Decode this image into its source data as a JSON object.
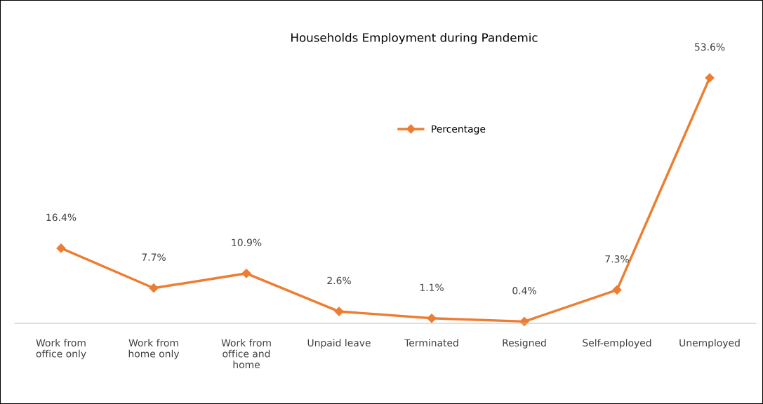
{
  "chart_data": {
    "type": "line",
    "title": "Households Employment during Pandemic",
    "categories": [
      "Work from\noffice only",
      "Work from\nhome only",
      "Work from\noffice and\nhome",
      "Unpaid leave",
      "Terminated",
      "Resigned",
      "Self-employed",
      "Unemployed"
    ],
    "series": [
      {
        "name": "Percentage",
        "color": "#ed7d31",
        "values": [
          16.4,
          7.7,
          10.9,
          2.6,
          1.1,
          0.4,
          7.3,
          53.6
        ],
        "value_labels": [
          "16.4%",
          "7.7%",
          "10.9%",
          "2.6%",
          "1.1%",
          "0.4%",
          "7.3%",
          "53.6%"
        ]
      }
    ],
    "marker": "diamond",
    "line_style": "solid",
    "legend": "top",
    "grid": false
  }
}
